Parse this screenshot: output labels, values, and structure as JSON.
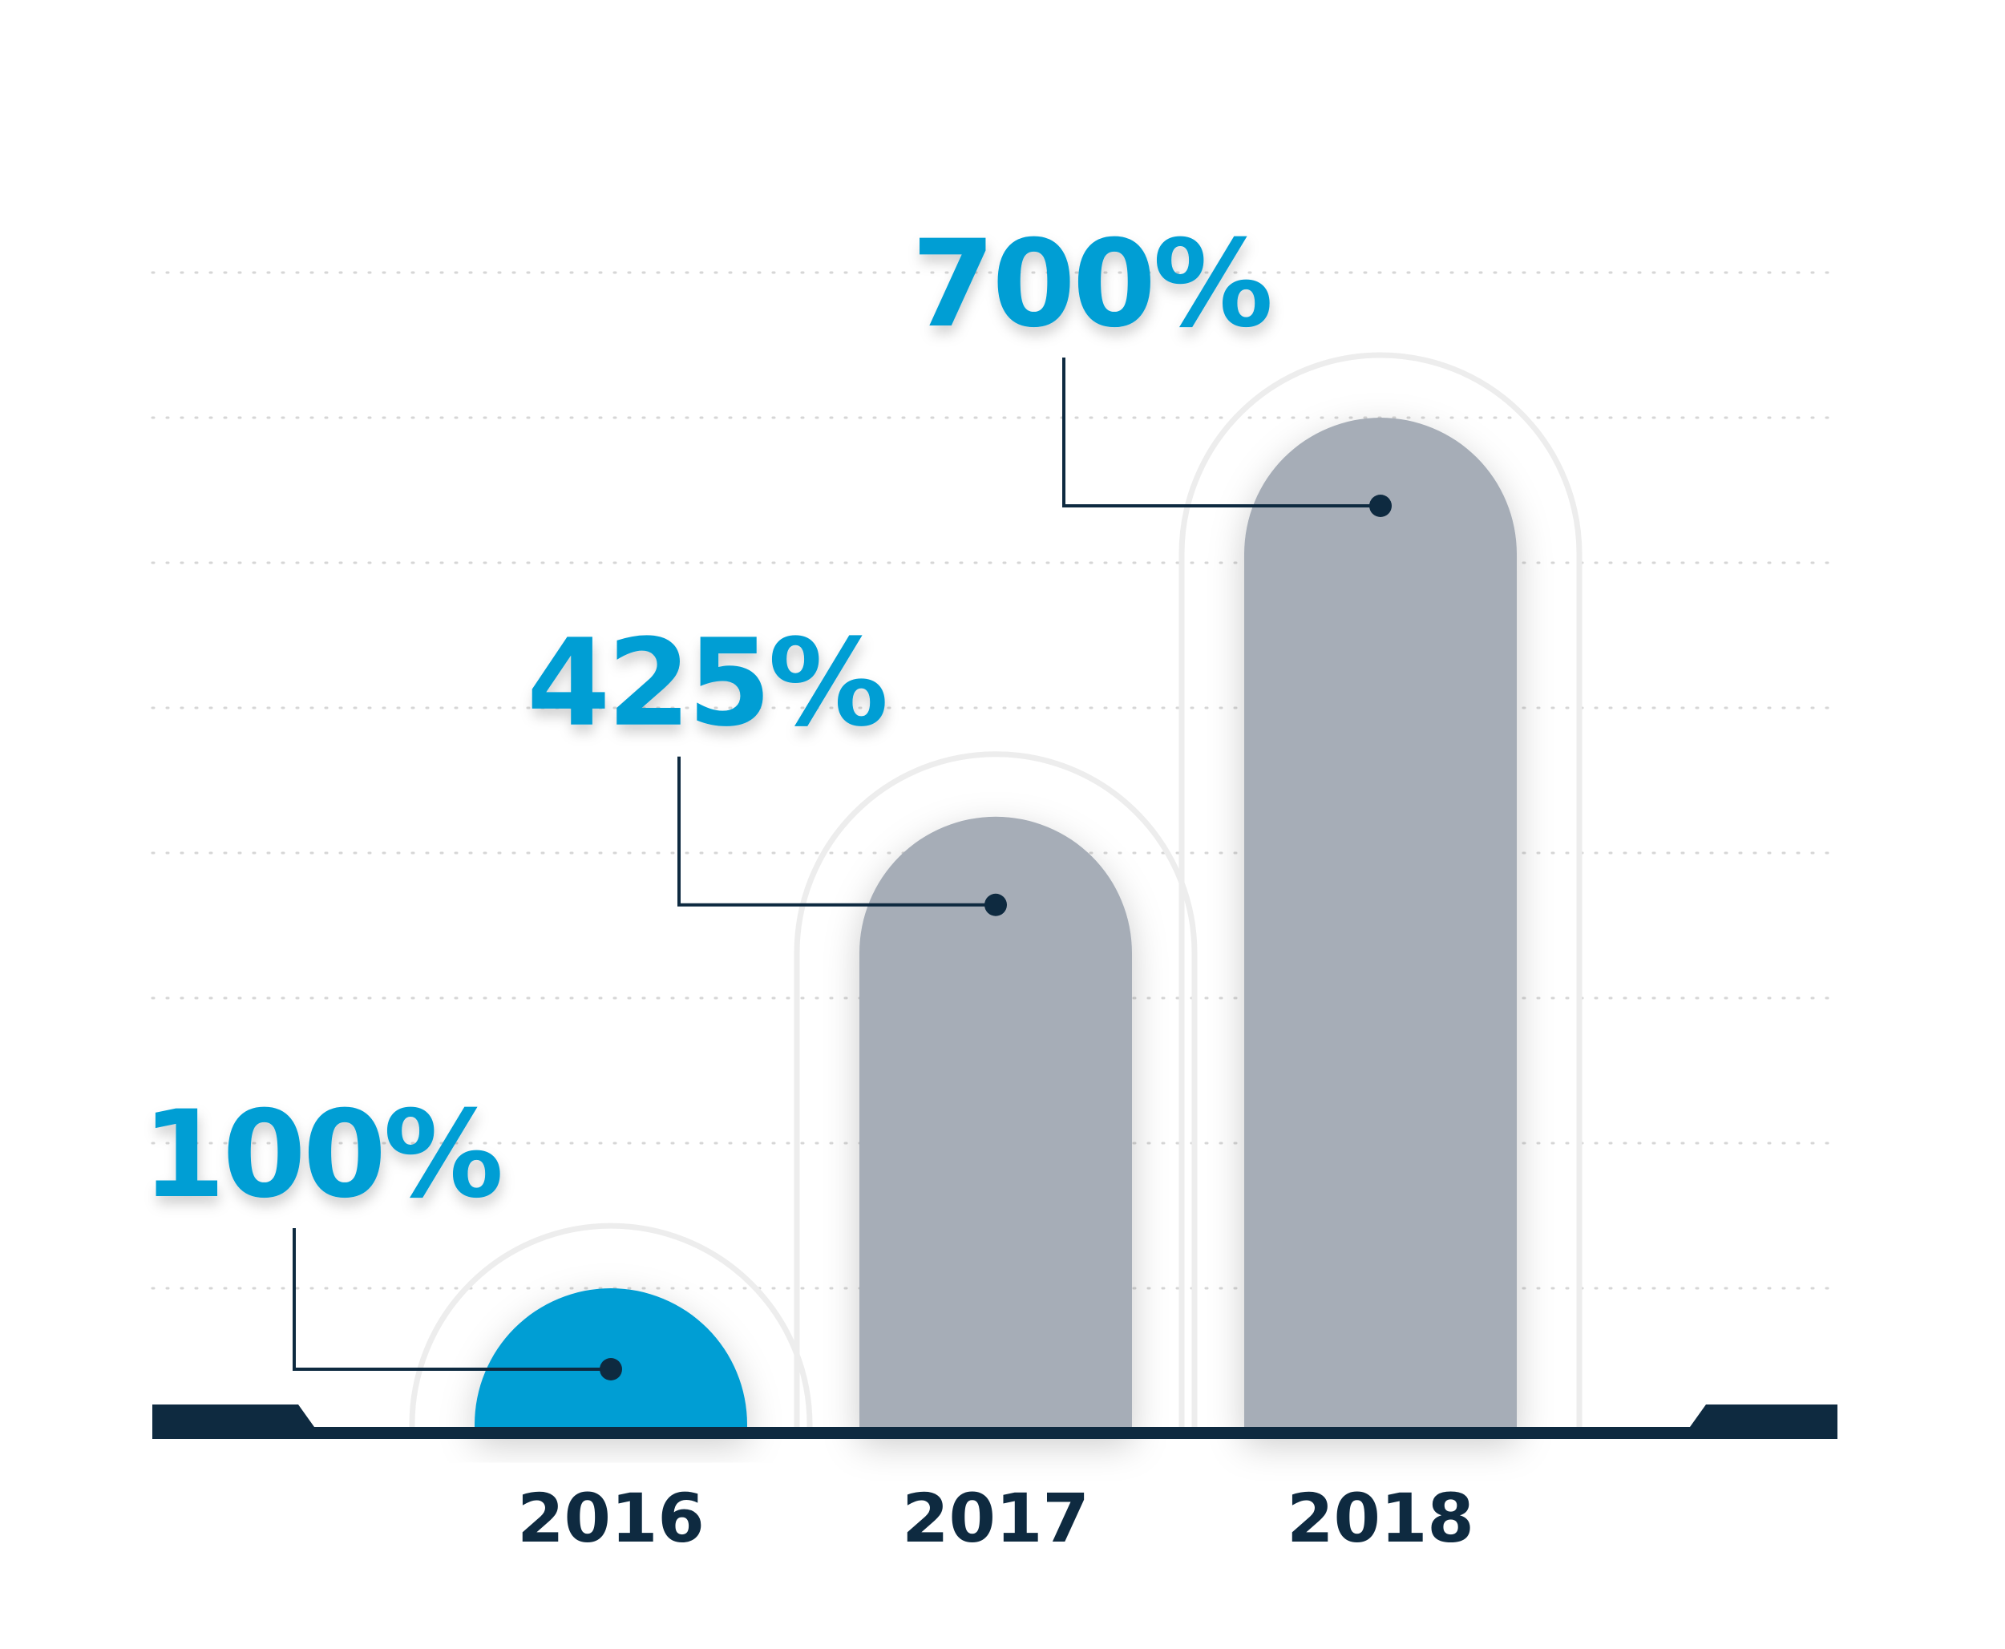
{
  "chart_data": {
    "type": "bar",
    "categories": [
      "2016",
      "2017",
      "2018"
    ],
    "values": [
      100,
      425,
      700
    ],
    "data_labels": [
      "100%",
      "425%",
      "700%"
    ],
    "ylim": [
      0,
      800
    ],
    "grid": "horizontal-dotted",
    "legend": "none",
    "colors": {
      "highlight": "#009ED4",
      "bar": "#A6ADB7",
      "label": "#009ED4",
      "axis": "#0E2A40",
      "year_text": "#0E2A40",
      "halo": "#EDEDED",
      "grid": "#D6D6D6"
    }
  }
}
